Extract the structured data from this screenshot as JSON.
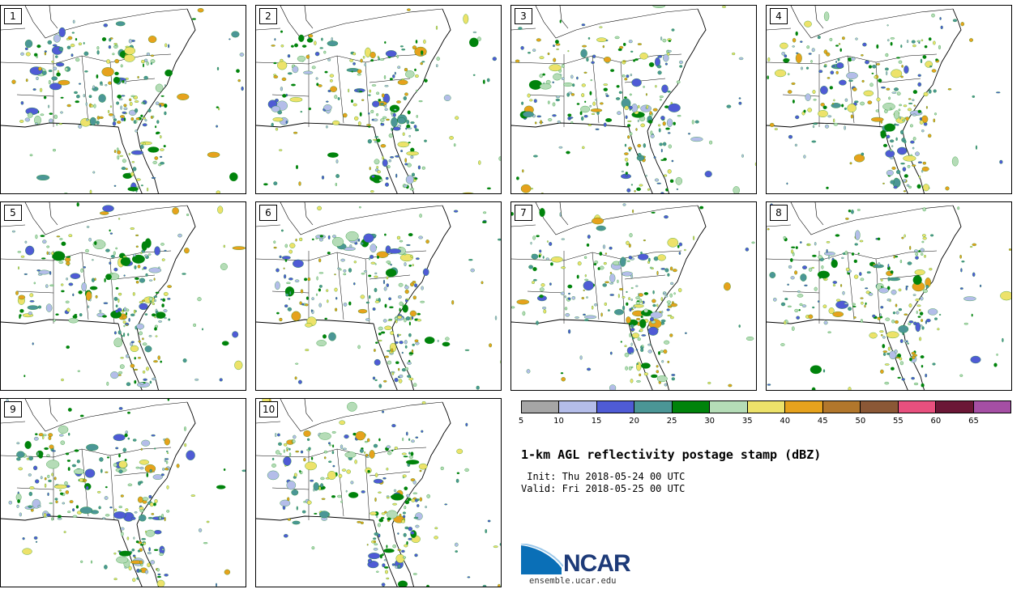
{
  "panels": [
    {
      "number": "1"
    },
    {
      "number": "2"
    },
    {
      "number": "3"
    },
    {
      "number": "4"
    },
    {
      "number": "5"
    },
    {
      "number": "6"
    },
    {
      "number": "7"
    },
    {
      "number": "8"
    },
    {
      "number": "9"
    },
    {
      "number": "10"
    }
  ],
  "colorbar": {
    "colors": [
      "#a6a6a6",
      "#b4bde9",
      "#4f5bd5",
      "#4b9696",
      "#00830b",
      "#b5dcb7",
      "#ede26a",
      "#e6a21d",
      "#b2772c",
      "#8b5836",
      "#e8507e",
      "#6b1736",
      "#a54fa4"
    ],
    "tick_labels": [
      "5",
      "10",
      "15",
      "20",
      "25",
      "30",
      "35",
      "40",
      "45",
      "50",
      "55",
      "60",
      "65"
    ]
  },
  "title": "1-km AGL reflectivity postage stamp (dBZ)",
  "init_line": " Init: Thu 2018-05-24 00 UTC",
  "valid_line": "Valid: Fri 2018-05-25 00 UTC",
  "logo": {
    "text": "NCAR",
    "url": "ensemble.ucar.edu",
    "color": "#1d3a78",
    "swoosh_color": "#0a6fb7"
  }
}
